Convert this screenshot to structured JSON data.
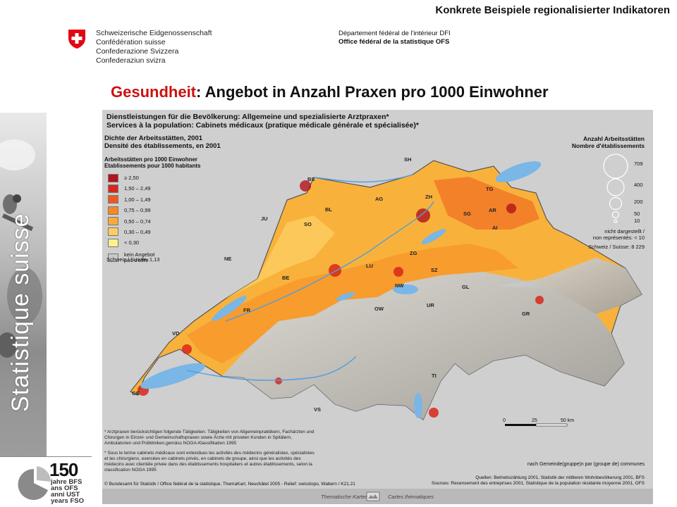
{
  "header": {
    "topline": "Konkrete Beispiele regionalisierter Indikatoren",
    "government": [
      "Schweizerische Eidgenossenschaft",
      "Confédération suisse",
      "Confederazione Svizzera",
      "Confederaziun svizra"
    ],
    "department": "Département fédéral de l'intérieur DFI",
    "office": "Office fédéral de la statistique OFS",
    "title_accent": "Gesundheit",
    "title_rest": ": Angebot in Anzahl Praxen pro 1000 Einwohner"
  },
  "sidebar": {
    "brand": "Statistique suisse",
    "jubilee_number": "150",
    "jubilee_lines": [
      "jahre BFS",
      "ans OFS",
      "anni UST",
      "years FSO"
    ]
  },
  "map_panel": {
    "title_de": "Dienstleistungen für die Bevölkerung: Allgemeine und spezialisierte Arztpraxen*",
    "title_fr": "Services à la population: Cabinets médicaux (pratique médicale générale et spécialisée)*",
    "density_de": "Dichte der Arbeitsstätten, 2001",
    "density_fr": "Densité des établissements, en 2001",
    "legend_title_de": "Arbeitsstätten pro 1000 Einwohner",
    "legend_title_fr": "Etablissements pour 1000 habitants",
    "legend": [
      {
        "label": "≥ 2,50",
        "color": "#b3131b"
      },
      {
        "label": "1,50 – 2,49",
        "color": "#d9261c"
      },
      {
        "label": "1,00 – 1,49",
        "color": "#ee5a1e"
      },
      {
        "label": "0,75 – 0,99",
        "color": "#f58a22"
      },
      {
        "label": "0,50 – 0,74",
        "color": "#f9aa3a"
      },
      {
        "label": "0,30 – 0,49",
        "color": "#fccd62"
      },
      {
        "label": "< 0,30",
        "color": "#fdf08e"
      }
    ],
    "no_offer_de": "kein Angebot",
    "no_offer_fr": "pas d'offre",
    "no_offer_color": "#c8c8c8",
    "ch_total_left": "Schweiz / Suisse: 1,13",
    "count_title_de": "Anzahl Arbeitsstätten",
    "count_title_fr": "Nombre d'établissements",
    "circle_values": [
      "709",
      "400",
      "200",
      "50",
      "10"
    ],
    "not_shown_de": "nicht dargestellt /",
    "not_shown_fr": "non représentés:",
    "not_shown_value": "< 10",
    "ch_total_right": "Schweiz / Suisse: 8 229",
    "cantons": [
      "SH",
      "BS",
      "BL",
      "AG",
      "ZH",
      "TG",
      "SG",
      "AR",
      "AI",
      "JU",
      "SO",
      "LU",
      "ZG",
      "SZ",
      "NE",
      "BE",
      "NW",
      "OW",
      "GL",
      "UR",
      "FR",
      "GR",
      "VD",
      "TI",
      "VS",
      "GE"
    ],
    "scale_labels": [
      "0",
      "25",
      "50 km"
    ],
    "footnote_de": "* Arztpraxen berücksichtigen folgende Tätigkeiten: Tätigkeiten von Allgemeinpraktikern, Fachärzten und Chirurgen in Einzel- und Gemeinschaftspraxen sowie Ärzte mit privaten Kunden in Spitälern, Ambulatorien und Polikliniken,gemäss NOGA-Klassifikation 1995",
    "footnote_fr": "* Sous le terme cabinets médicaux sont entendues les activités des médecins généralistes, spécialistes et les chirurgiens, exercées en cabinets privés, en cabinets de groupe, ainsi que les activités des médecins avec clientèle privée dans des établissements hospitaliers et autres établissements, selon la classification NOGA 1995",
    "per_municipality": "nach Gemeinde(gruppe)n par (groupe de) communes",
    "sources_de": "Quellen: Betriebszählung 2001, Statistik der mittleren Wohnbevölkerung 2001, BFS",
    "sources_fr": "Sources: Recensement des entreprises 2001, Statistique de la population résidante moyenne 2001, OFS",
    "copyright": "© Bundesamt für Statistik / Office fédéral de la statistique, ThemaKart, Neuchâtel 2005 - Relief: swisstopo, Wabern / K21.21",
    "footer_left": "Thematische Karten",
    "footer_right": "Cartes thématiques"
  }
}
